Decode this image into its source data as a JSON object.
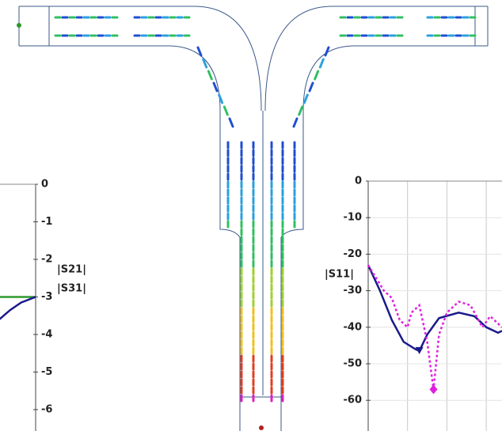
{
  "chart_data": [
    {
      "type": "line",
      "y_label_1": "|S21|",
      "y_label_2": "|S31|",
      "xlim": [
        0,
        1
      ],
      "ylim": [
        -6.57,
        0
      ],
      "yticks": [
        0,
        -1,
        -2,
        -3,
        -4,
        -5,
        -6
      ],
      "series": [
        {
          "color": "#2e9b2e",
          "x": [
            0,
            1
          ],
          "values": [
            -3,
            -3
          ]
        },
        {
          "color": "#1a1a8c",
          "x": [
            0,
            0.3,
            0.6,
            1
          ],
          "values": [
            -3.6,
            -3.35,
            -3.15,
            -3
          ]
        }
      ]
    },
    {
      "type": "line",
      "y_label": "|S11|",
      "xlim": [
        0,
        3.4
      ],
      "ylim": [
        -68.4,
        0
      ],
      "yticks": [
        0,
        -10,
        -20,
        -30,
        -40,
        -50,
        -60
      ],
      "grid": true,
      "xgrid": [
        1,
        2,
        3
      ],
      "series": [
        {
          "color": "#1a1a8c",
          "dash": false,
          "marker": "triangle",
          "x": [
            0,
            0.3,
            0.6,
            0.9,
            1.2,
            1.3,
            1.5,
            1.8,
            2.3,
            2.7,
            3.0,
            3.3,
            3.4
          ],
          "values": [
            -23,
            -30,
            -38,
            -44,
            -46,
            -46.5,
            -42,
            -37.5,
            -36,
            -37,
            -40,
            -41.5,
            -41
          ]
        },
        {
          "color": "#e020e0",
          "dash": true,
          "marker": "diamond",
          "x": [
            0,
            0.4,
            0.6,
            0.8,
            1.0,
            1.1,
            1.3,
            1.5,
            1.66,
            1.8,
            2.0,
            2.3,
            2.6,
            2.9,
            3.1,
            3.3,
            3.4
          ],
          "values": [
            -23,
            -30,
            -32,
            -38,
            -40,
            -36,
            -34,
            -44,
            -57,
            -42,
            -36,
            -33,
            -34,
            -40,
            -37,
            -39,
            -40
          ]
        }
      ]
    }
  ]
}
